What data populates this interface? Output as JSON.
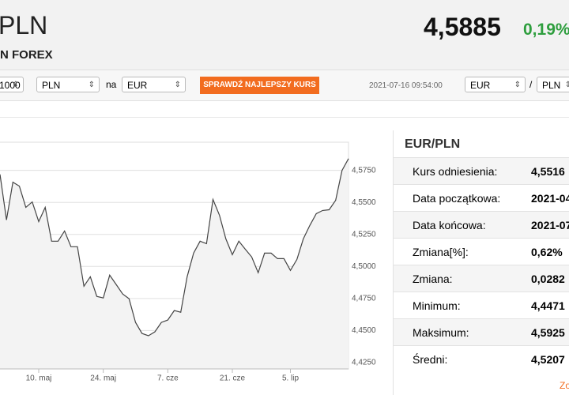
{
  "header": {
    "title": "PLN",
    "subtitle": "N FOREX",
    "price": "4,5885",
    "change": "0,19%"
  },
  "toolbar": {
    "amount": "1000",
    "from": "PLN",
    "na": "na",
    "to": "EUR",
    "button": "SPRAWDŹ NAJLEPSZY KURS",
    "timestamp": "2021-07-16 09:54:00",
    "pair_from": "EUR",
    "slash": "/",
    "pair_to": "PLN"
  },
  "chart_data": {
    "type": "line",
    "categories": [
      null,
      null,
      null,
      null,
      null,
      null,
      "10. maj",
      null,
      null,
      null,
      null,
      null,
      null,
      null,
      null,
      null,
      "24. maj",
      null,
      null,
      null,
      null,
      null,
      null,
      null,
      null,
      null,
      "7. cze",
      null,
      null,
      null,
      null,
      null,
      null,
      null,
      null,
      null,
      "21. cze",
      null,
      null,
      null,
      null,
      null,
      null,
      null,
      null,
      "5. lip",
      null,
      null,
      null,
      null,
      null,
      null,
      null,
      null,
      null
    ],
    "series": [
      {
        "name": "EUR/PLN",
        "color": "#444444",
        "values": [
          4.5719,
          4.5363,
          4.5658,
          4.5627,
          4.5461,
          4.5504,
          4.535,
          4.5461,
          4.5197,
          4.5197,
          4.5277,
          4.5154,
          4.5154,
          4.4846,
          4.492,
          4.4766,
          4.4754,
          4.4932,
          4.4859,
          4.4785,
          4.4748,
          4.4563,
          4.4477,
          4.4459,
          4.449,
          4.4563,
          4.4582,
          4.4656,
          4.4643,
          4.492,
          4.5104,
          4.5197,
          4.5178,
          4.5523,
          4.54,
          4.5215,
          4.5092,
          4.5197,
          4.5135,
          4.5074,
          4.4951,
          4.5104,
          4.5104,
          4.5061,
          4.5061,
          4.4969,
          4.5055,
          4.5215,
          4.532,
          4.5412,
          4.5437,
          4.5443,
          4.5516,
          4.575,
          4.5842
        ]
      }
    ],
    "ylim": [
      4.42,
      4.597
    ],
    "yticks": [
      {
        "value": 4.425,
        "label": "4,4250"
      },
      {
        "value": 4.45,
        "label": "4,4500"
      },
      {
        "value": 4.475,
        "label": "4,4750"
      },
      {
        "value": 4.5,
        "label": "4,5000"
      },
      {
        "value": 4.525,
        "label": "4,5250"
      },
      {
        "value": 4.55,
        "label": "4,5500"
      },
      {
        "value": 4.575,
        "label": "4,5750"
      }
    ],
    "grid": true
  },
  "stats": {
    "title": "EUR/PLN",
    "rows": [
      [
        "Kurs odniesienia:",
        "4,5516"
      ],
      [
        "Data początkowa:",
        "2021-04"
      ],
      [
        "Data końcowa:",
        "2021-07"
      ],
      [
        "Zmiana[%]:",
        "0,62%"
      ],
      [
        "Zmiana:",
        "0,0282"
      ],
      [
        "Minimum:",
        "4,4471"
      ],
      [
        "Maksimum:",
        "4,5925"
      ],
      [
        "Średni:",
        "4,5207"
      ]
    ],
    "link": "Zo"
  }
}
